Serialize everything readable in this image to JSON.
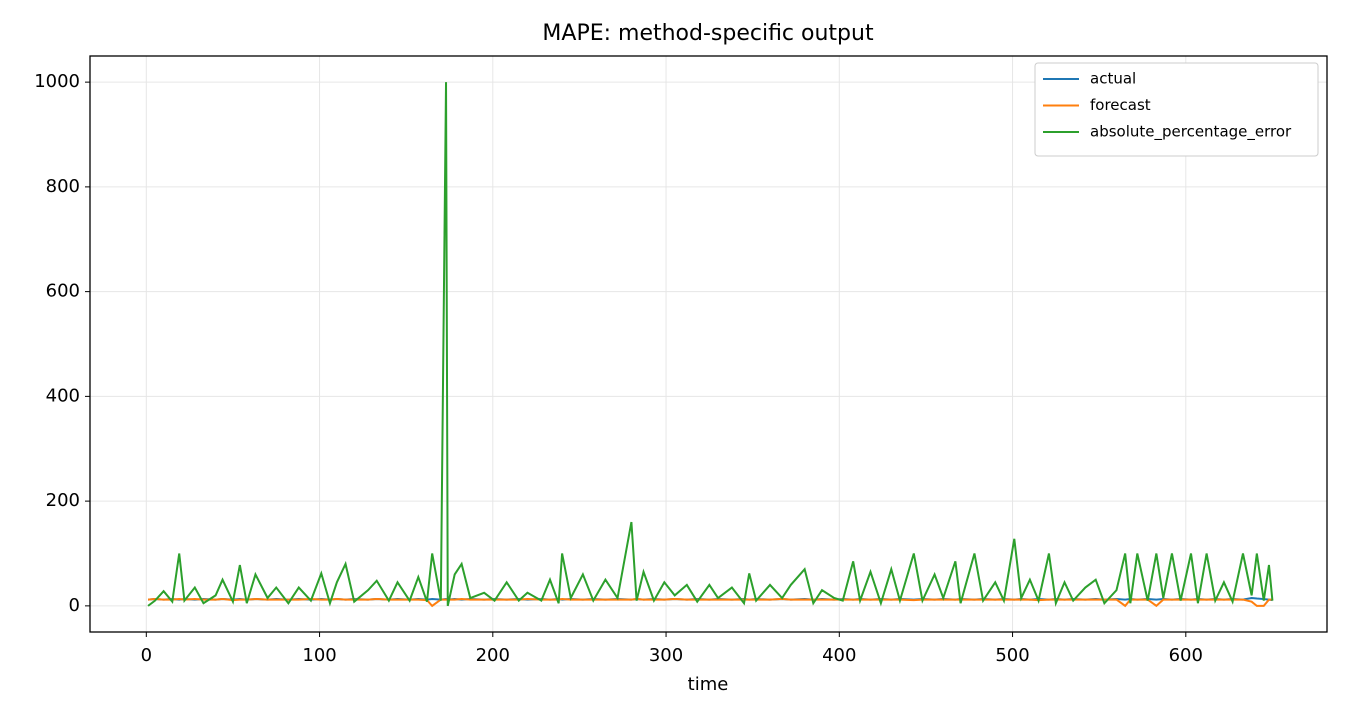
{
  "chart_data": {
    "type": "line",
    "title": "MAPE: method-specific output",
    "x_label": "time",
    "x": [
      1,
      5,
      10,
      15,
      19,
      22,
      28,
      33,
      40,
      44,
      50,
      54,
      58,
      63,
      70,
      75,
      82,
      88,
      95,
      101,
      106,
      110,
      115,
      120,
      128,
      133,
      140,
      145,
      152,
      157,
      162,
      165,
      170,
      173,
      174,
      178,
      182,
      187,
      195,
      201,
      208,
      215,
      220,
      228,
      233,
      238,
      240,
      245,
      252,
      258,
      265,
      272,
      280,
      283,
      287,
      293,
      299,
      305,
      312,
      318,
      325,
      330,
      338,
      345,
      348,
      352,
      360,
      367,
      372,
      380,
      385,
      390,
      397,
      402,
      408,
      412,
      418,
      424,
      430,
      435,
      443,
      448,
      455,
      460,
      467,
      470,
      478,
      483,
      490,
      495,
      501,
      505,
      510,
      515,
      521,
      525,
      530,
      535,
      542,
      548,
      553,
      560,
      565,
      568,
      572,
      578,
      583,
      587,
      592,
      597,
      603,
      607,
      612,
      617,
      622,
      627,
      633,
      638,
      641,
      645,
      648,
      650
    ],
    "series": [
      {
        "name": "actual",
        "color": "#1f77b4",
        "values": [
          12,
          13,
          12,
          13,
          12,
          13,
          12,
          13,
          12,
          13,
          12,
          13,
          12,
          13,
          12,
          13,
          12,
          13,
          12,
          13,
          12,
          13,
          12,
          13,
          12,
          13,
          12,
          13,
          12,
          13,
          12,
          13,
          12,
          13,
          12,
          13,
          12,
          13,
          12,
          13,
          12,
          13,
          12,
          13,
          12,
          13,
          12,
          13,
          12,
          13,
          12,
          13,
          12,
          13,
          12,
          13,
          12,
          13,
          12,
          13,
          12,
          13,
          12,
          13,
          12,
          13,
          12,
          13,
          12,
          13,
          12,
          13,
          12,
          13,
          12,
          13,
          12,
          13,
          12,
          13,
          12,
          13,
          12,
          13,
          12,
          13,
          12,
          13,
          12,
          13,
          12,
          13,
          12,
          13,
          12,
          13,
          12,
          13,
          12,
          13,
          12,
          13,
          12,
          13,
          12,
          13,
          12,
          13,
          12,
          13,
          12,
          13,
          12,
          13,
          12,
          13,
          12,
          15,
          14,
          13,
          12,
          11
        ]
      },
      {
        "name": "forecast",
        "color": "#ff7f0e",
        "values": [
          12,
          13,
          12,
          12,
          13,
          12,
          13,
          12,
          12,
          13,
          11,
          12,
          12,
          13,
          12,
          12,
          12,
          12,
          13,
          12,
          12,
          13,
          12,
          12,
          12,
          13,
          12,
          12,
          12,
          12,
          11,
          0,
          12,
          12,
          12,
          12,
          13,
          12,
          12,
          12,
          12,
          12,
          13,
          12,
          12,
          12,
          13,
          12,
          12,
          12,
          12,
          12,
          12,
          13,
          12,
          12,
          12,
          13,
          12,
          12,
          12,
          12,
          12,
          12,
          12,
          12,
          12,
          13,
          12,
          12,
          12,
          12,
          12,
          12,
          12,
          12,
          12,
          12,
          12,
          12,
          11,
          12,
          12,
          12,
          12,
          12,
          12,
          12,
          12,
          12,
          12,
          12,
          12,
          11,
          12,
          12,
          12,
          12,
          12,
          12,
          12,
          12,
          0,
          12,
          12,
          12,
          0,
          12,
          12,
          12,
          12,
          12,
          12,
          12,
          12,
          12,
          12,
          8,
          0,
          0,
          12,
          12
        ]
      },
      {
        "name": "absolute_percentage_error",
        "color": "#2ca02c",
        "values": [
          0,
          10,
          28,
          8,
          100,
          10,
          35,
          5,
          20,
          50,
          8,
          78,
          5,
          60,
          15,
          35,
          5,
          35,
          10,
          62,
          5,
          45,
          80,
          8,
          30,
          48,
          10,
          45,
          10,
          55,
          8,
          100,
          10,
          1000,
          0,
          60,
          80,
          15,
          25,
          10,
          45,
          10,
          25,
          10,
          50,
          5,
          100,
          15,
          60,
          10,
          50,
          15,
          160,
          10,
          65,
          10,
          45,
          20,
          40,
          8,
          40,
          15,
          35,
          5,
          62,
          10,
          40,
          15,
          40,
          70,
          5,
          30,
          15,
          10,
          85,
          10,
          65,
          5,
          70,
          10,
          100,
          10,
          60,
          15,
          85,
          5,
          100,
          10,
          45,
          10,
          128,
          15,
          50,
          10,
          100,
          5,
          45,
          10,
          35,
          50,
          5,
          30,
          100,
          5,
          100,
          10,
          100,
          15,
          100,
          10,
          100,
          5,
          100,
          10,
          45,
          8,
          100,
          20,
          100,
          10,
          78,
          10
        ]
      }
    ],
    "xlim": [
      -32.5,
      681.5
    ],
    "ylim": [
      -49.9,
      1049.9
    ],
    "xticks": [
      0,
      100,
      200,
      300,
      400,
      500,
      600
    ],
    "yticks": [
      0,
      200,
      400,
      600,
      800,
      1000
    ],
    "grid": true,
    "legend": "upper right"
  }
}
